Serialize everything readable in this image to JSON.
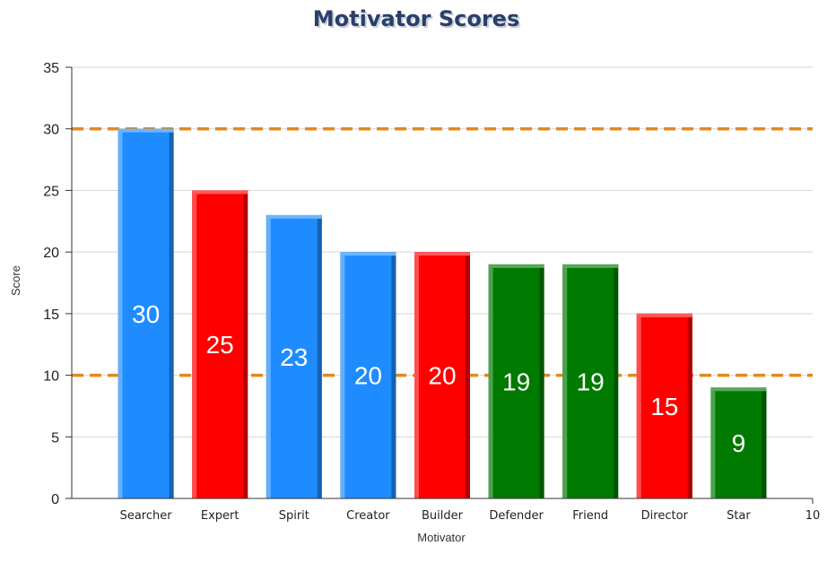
{
  "chart_data": {
    "type": "bar",
    "title": "Motivator Scores",
    "xlabel": "Motivator",
    "ylabel": "Score",
    "categories": [
      "Searcher",
      "Expert",
      "Spirit",
      "Creator",
      "Builder",
      "Defender",
      "Friend",
      "Director",
      "Star"
    ],
    "values": [
      30,
      25,
      23,
      20,
      20,
      19,
      19,
      15,
      9
    ],
    "bar_colors": [
      "#1e8cff",
      "#ff0000",
      "#1e8cff",
      "#1e8cff",
      "#ff0000",
      "#007a00",
      "#007a00",
      "#ff0000",
      "#007a00"
    ],
    "ylim": [
      0,
      35
    ],
    "yticks": [
      0,
      5,
      10,
      15,
      20,
      25,
      30,
      35
    ],
    "xlim": [
      0,
      10
    ],
    "x_edge_label": "10",
    "reference_lines": [
      {
        "y": 30,
        "color": "#e08a1e",
        "style": "dashed"
      },
      {
        "y": 10,
        "color": "#e08a1e",
        "style": "dashed"
      }
    ],
    "grid": true,
    "legend": "none"
  }
}
